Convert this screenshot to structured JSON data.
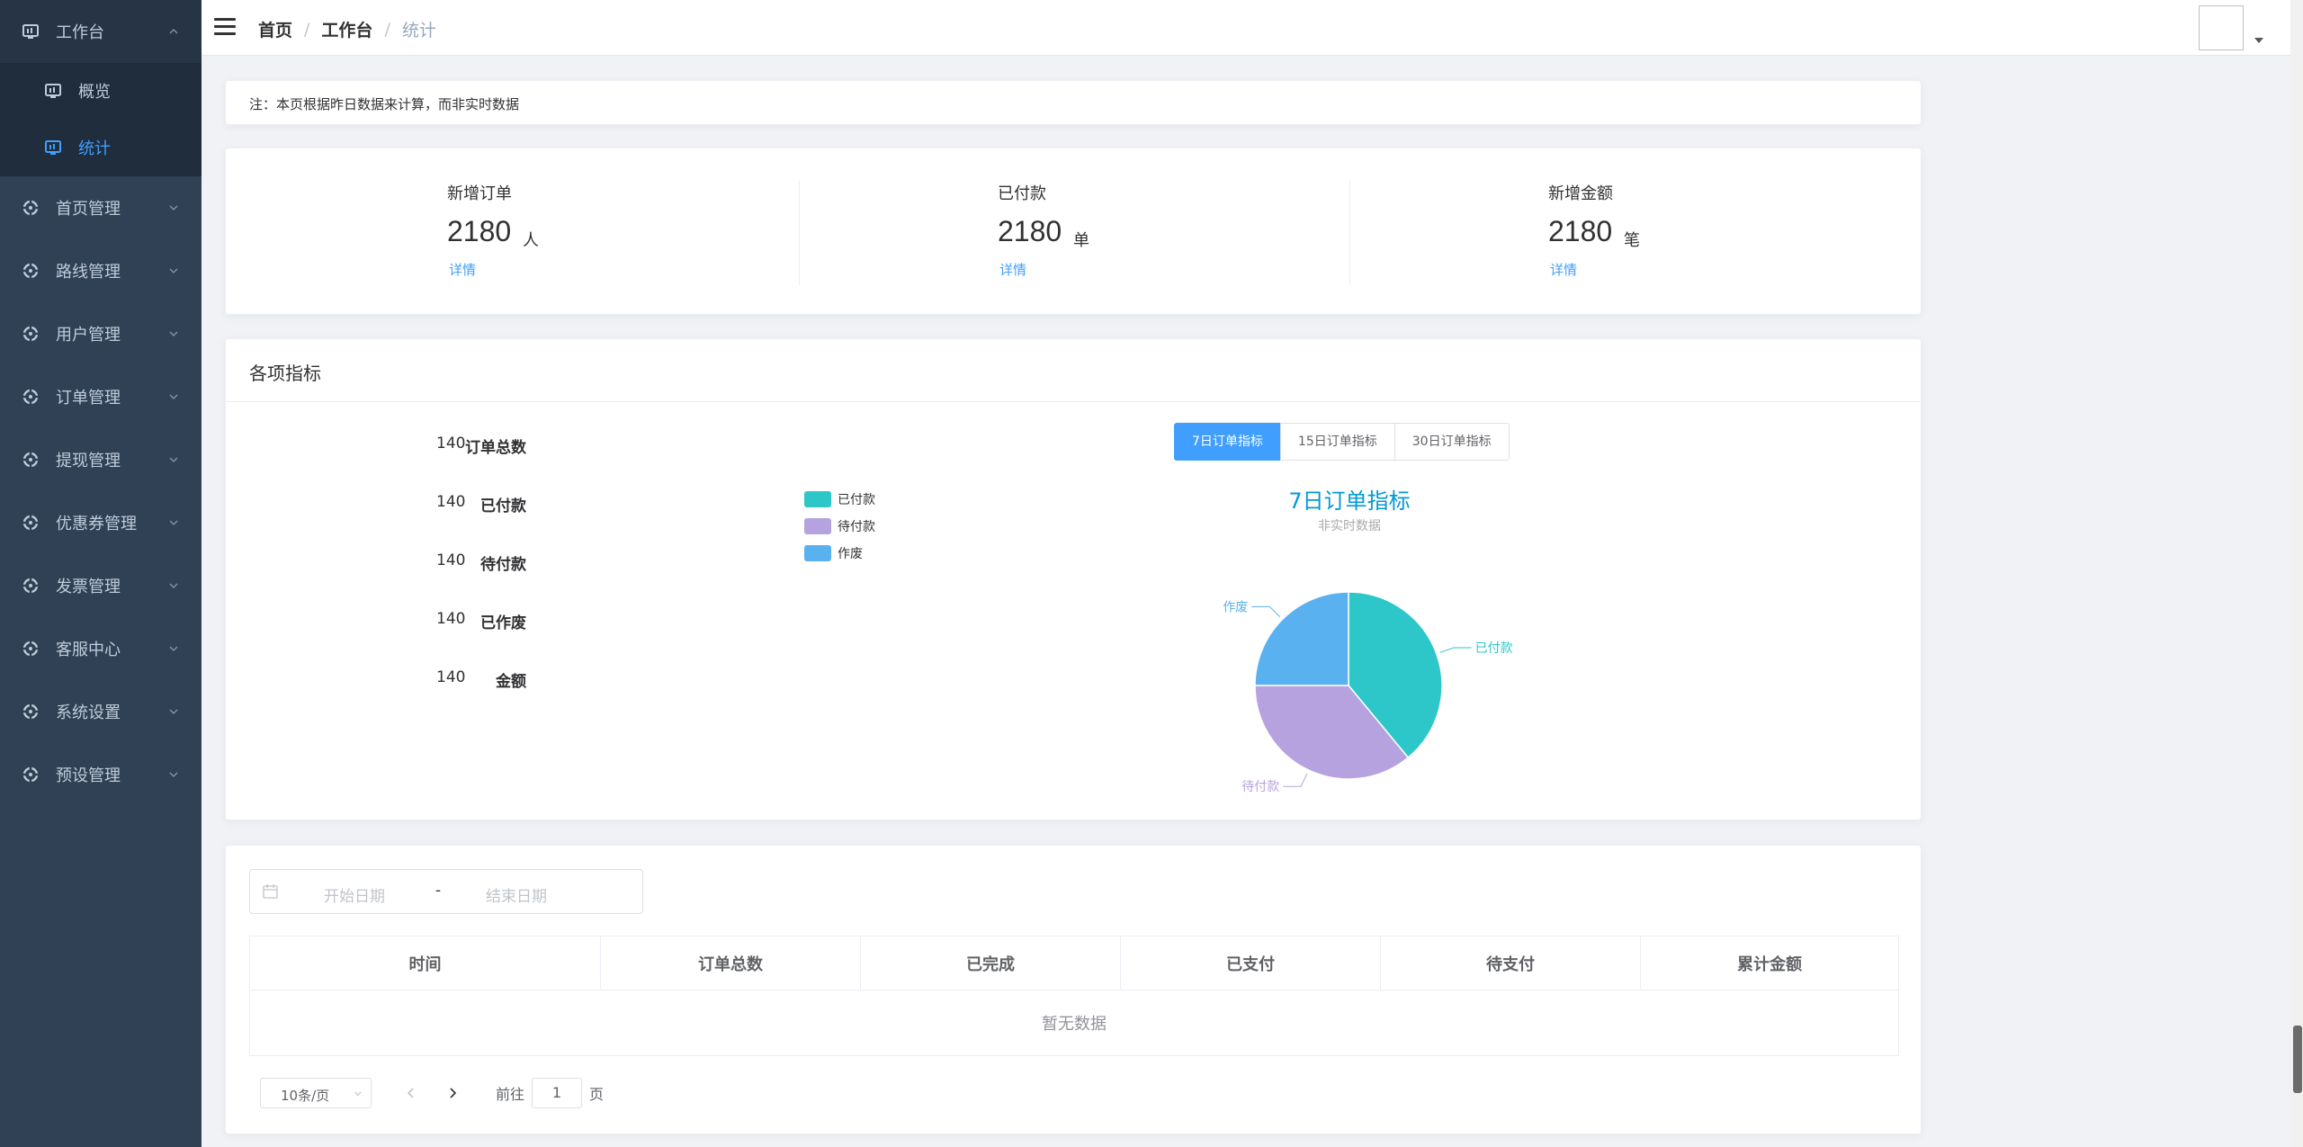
{
  "sidebar": {
    "workbench": "工作台",
    "sub": [
      "概览",
      "统计"
    ],
    "items": [
      "首页管理",
      "路线管理",
      "用户管理",
      "订单管理",
      "提现管理",
      "优惠券管理",
      "发票管理",
      "客服中心",
      "系统设置",
      "预设管理"
    ]
  },
  "breadcrumb": {
    "home": "首页",
    "sep1": "/",
    "workbench": "工作台",
    "sep2": "/",
    "current": "统计"
  },
  "note": "注：本页根据昨日数据来计算，而非实时数据",
  "stats": [
    {
      "label": "新增订单",
      "value": "2180",
      "unit": "人",
      "link": "详情"
    },
    {
      "label": "已付款",
      "value": "2180",
      "unit": "单",
      "link": "详情"
    },
    {
      "label": "新增金额",
      "value": "2180",
      "unit": "笔",
      "link": "详情"
    }
  ],
  "metrics": {
    "title": "各项指标",
    "kv": [
      {
        "label": "订单总数",
        "value": "140"
      },
      {
        "label": "已付款",
        "value": "140"
      },
      {
        "label": "待付款",
        "value": "140"
      },
      {
        "label": "已作废",
        "value": "140"
      },
      {
        "label": "金额",
        "value": "140"
      }
    ],
    "buttons": [
      "7日订单指标",
      "15日订单指标",
      "30日订单指标"
    ],
    "active_button": "7日订单指标"
  },
  "chart_data": {
    "type": "pie",
    "title": "7日订单指标",
    "subtitle": "非实时数据",
    "legend_position": "left",
    "series": [
      {
        "name": "已付款",
        "value": 39,
        "color": "#2ec7c9"
      },
      {
        "name": "待付款",
        "value": 36,
        "color": "#b6a2de"
      },
      {
        "name": "作废",
        "value": 25,
        "color": "#5ab1ef"
      }
    ]
  },
  "table": {
    "start_placeholder": "开始日期",
    "range_sep": "-",
    "end_placeholder": "结束日期",
    "columns": [
      "时间",
      "订单总数",
      "已完成",
      "已支付",
      "待支付",
      "累计金额"
    ],
    "empty_text": "暂无数据"
  },
  "pager": {
    "size": "10条/页",
    "goto": "前往",
    "page": "1",
    "page_suffix": "页"
  }
}
